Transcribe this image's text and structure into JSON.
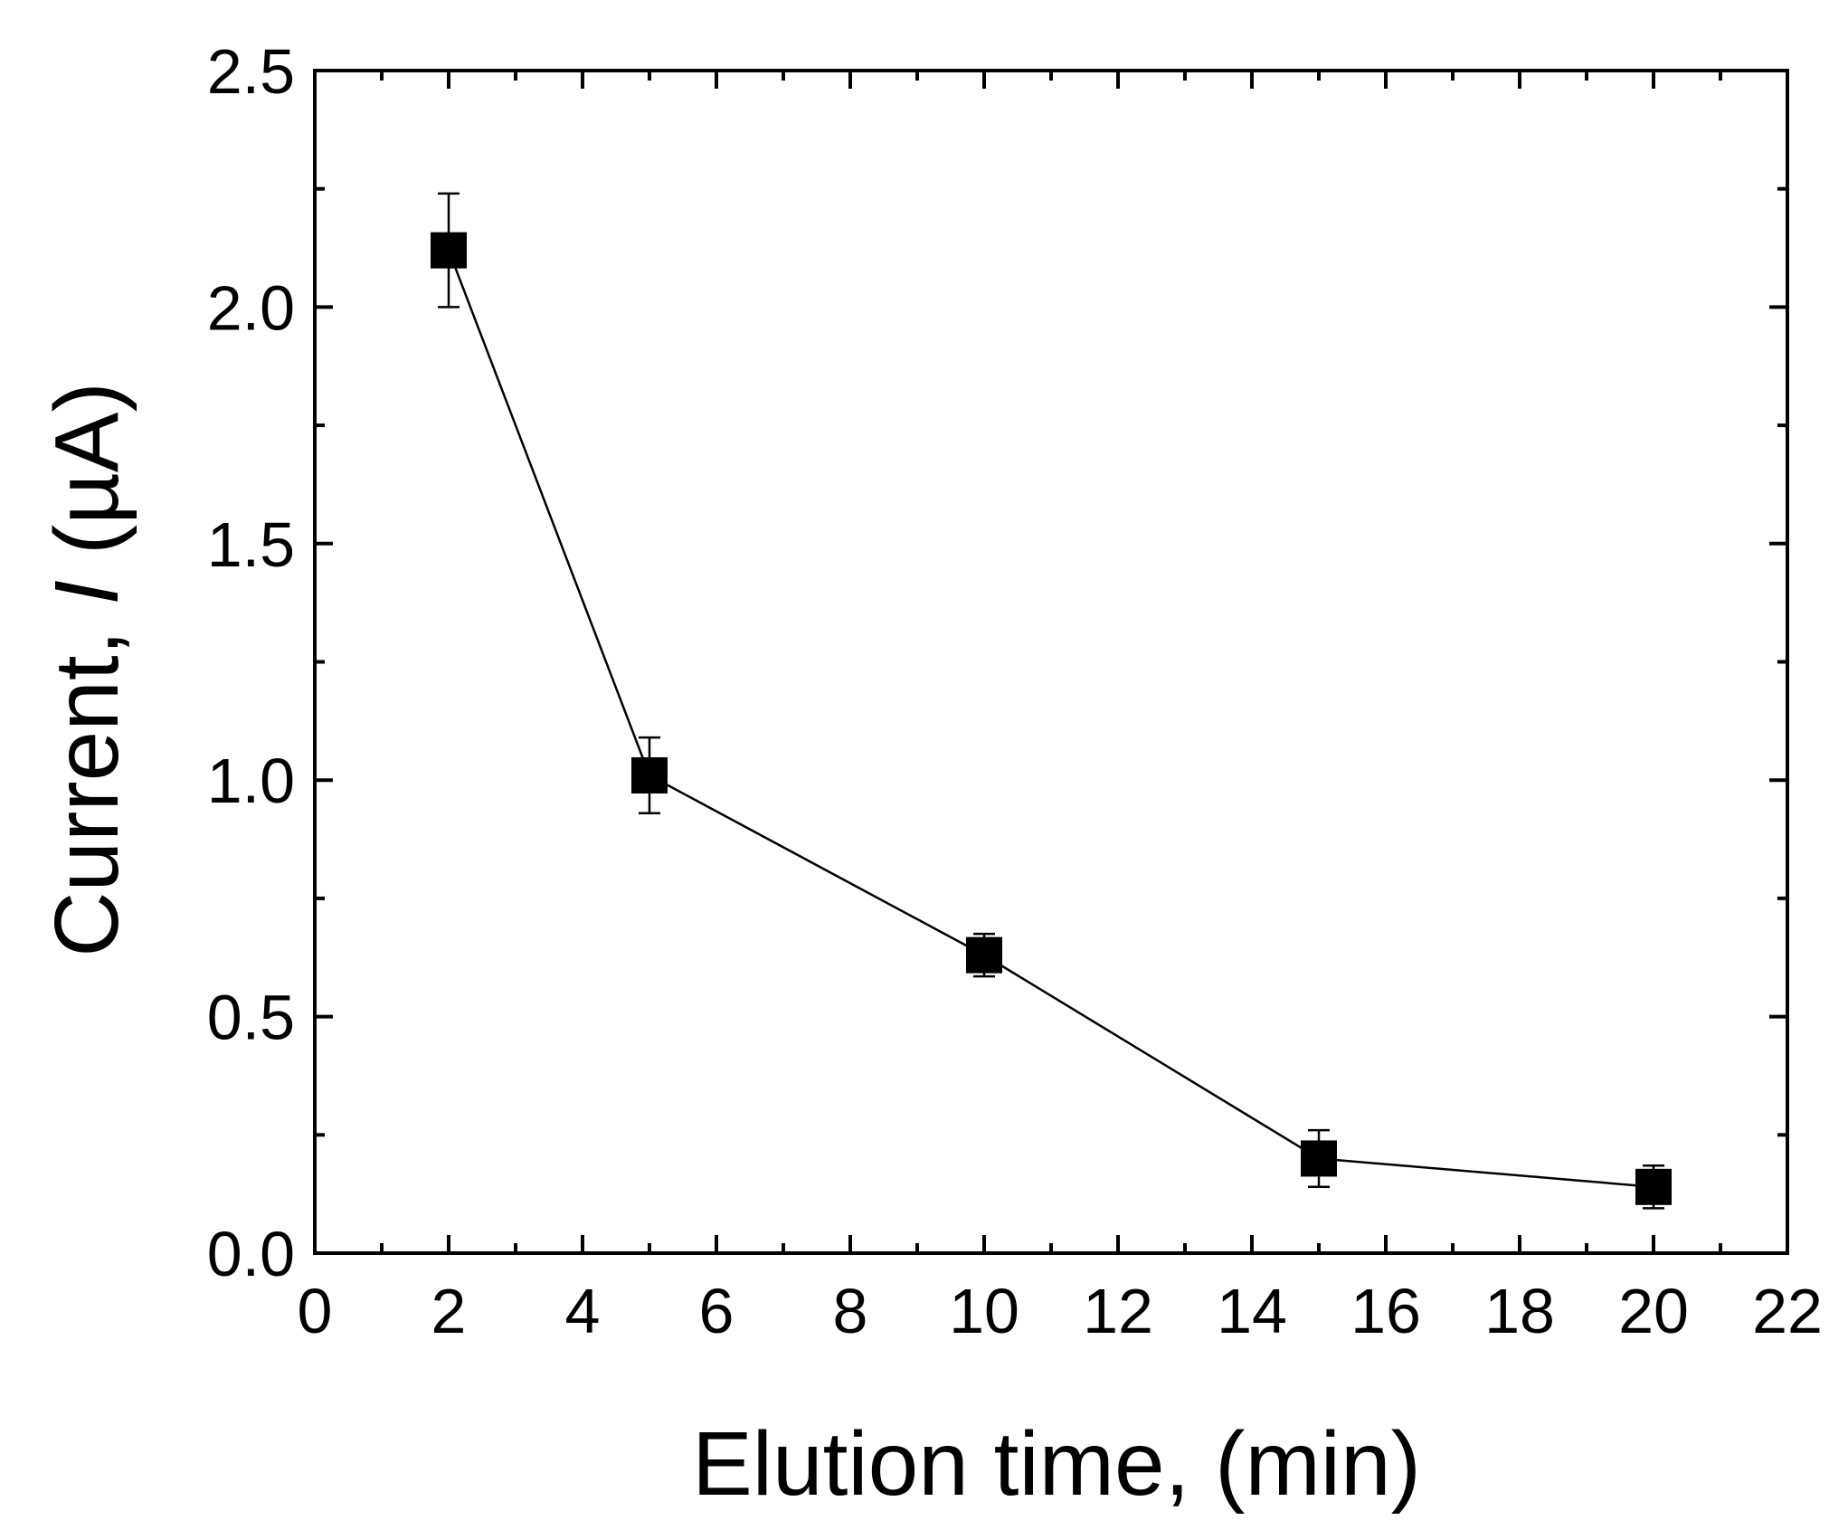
{
  "chart_data": {
    "type": "line",
    "xlabel": "Elution time, (min)",
    "ylabel_parts": [
      "Current, ",
      "I",
      " (µA)"
    ],
    "xlim": [
      0,
      22
    ],
    "ylim": [
      0,
      2.5
    ],
    "xticks": [
      0,
      2,
      4,
      6,
      8,
      10,
      12,
      14,
      16,
      18,
      20,
      22
    ],
    "yticks": [
      "0.0",
      "0.5",
      "1.0",
      "1.5",
      "2.0",
      "2.5"
    ],
    "grid": false,
    "marker": "square",
    "color": "#000000",
    "series": [
      {
        "x": [
          2,
          5,
          10,
          15,
          20
        ],
        "y": [
          2.12,
          1.01,
          0.63,
          0.2,
          0.14
        ],
        "error": [
          0.12,
          0.08,
          0.045,
          0.06,
          0.045
        ]
      }
    ]
  }
}
